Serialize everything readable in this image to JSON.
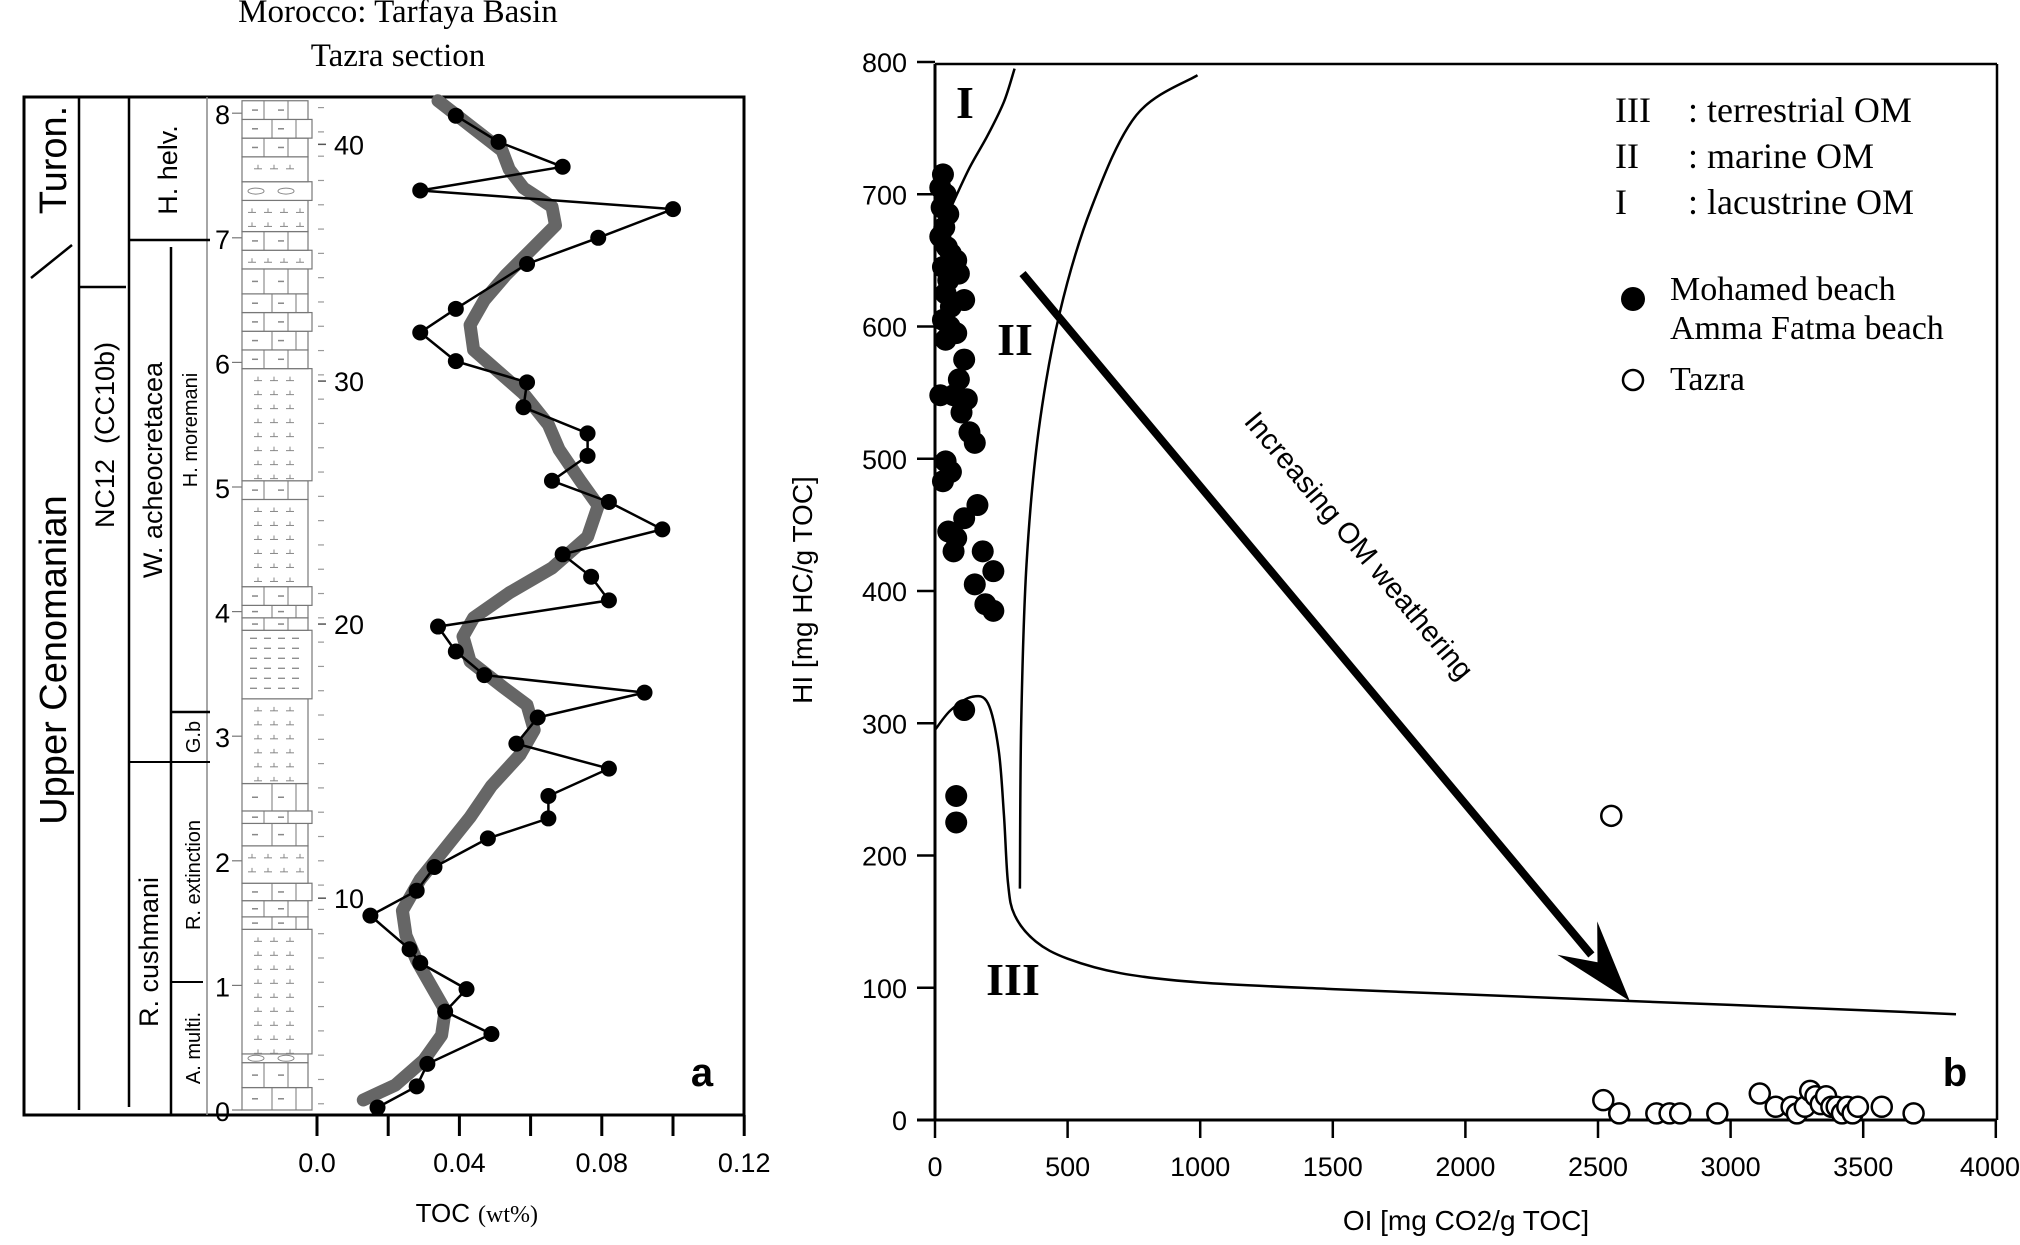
{
  "chart_data": [
    {
      "type": "line",
      "panel_label": "a",
      "title": [
        "Morocco: Tarfaya Basin",
        "Tazra section"
      ],
      "xlabel": "TOC",
      "xlabel_unit": "(wt%)",
      "ylabel": "",
      "xlim": [
        0.0,
        0.12
      ],
      "ylim": [
        0,
        8
      ],
      "x_ticks": [
        0.0,
        0.02,
        0.04,
        0.06,
        0.08,
        0.1,
        0.12
      ],
      "x_tick_labels": [
        "0.0",
        "0.04",
        "0.08",
        "0.12"
      ],
      "y_tick_labels": [
        "0",
        "1",
        "2",
        "3",
        "4",
        "5",
        "6",
        "7",
        "8"
      ],
      "sample_labels": [
        "10",
        "20",
        "30",
        "40"
      ],
      "sample_label_depths": [
        1.7,
        3.9,
        5.85,
        7.75
      ],
      "stages": [
        {
          "label": "Turon.",
          "from": 6.5,
          "to": 8.1
        },
        {
          "label": "Upper Cenomanian",
          "from": 0,
          "to": 6.5
        }
      ],
      "nannofossil_zone": {
        "label": "NC12  (CC10b)",
        "from": 0,
        "to": 6.5
      },
      "foram_zones": [
        {
          "label": "H. helv.",
          "from": 6.95,
          "to": 8.1
        },
        {
          "label": "W. acheocretacea",
          "from": 2.8,
          "to": 6.95
        },
        {
          "label": "R. cushmani",
          "from": 0,
          "to": 2.8
        }
      ],
      "foram_subzones": [
        {
          "label": "H. moremani",
          "from": 3.2,
          "to": 6.95
        },
        {
          "label": "G.b",
          "from": 2.8,
          "to": 3.2
        },
        {
          "label": "R. extinction",
          "from": 1.0,
          "to": 2.8
        },
        {
          "label": "A. multi.",
          "from": 0,
          "to": 1.0
        }
      ],
      "series": [
        {
          "name": "TOC samples",
          "style": "black line with filled circles",
          "points": [
            [
              0.039,
              7.98
            ],
            [
              0.051,
              7.77
            ],
            [
              0.069,
              7.57
            ],
            [
              0.029,
              7.38
            ],
            [
              0.1,
              7.23
            ],
            [
              0.079,
              7.0
            ],
            [
              0.059,
              6.79
            ],
            [
              0.039,
              6.43
            ],
            [
              0.029,
              6.24
            ],
            [
              0.039,
              6.01
            ],
            [
              0.059,
              5.84
            ],
            [
              0.058,
              5.64
            ],
            [
              0.076,
              5.43
            ],
            [
              0.076,
              5.25
            ],
            [
              0.066,
              5.05
            ],
            [
              0.082,
              4.88
            ],
            [
              0.097,
              4.66
            ],
            [
              0.069,
              4.46
            ],
            [
              0.077,
              4.28
            ],
            [
              0.082,
              4.09
            ],
            [
              0.034,
              3.88
            ],
            [
              0.039,
              3.68
            ],
            [
              0.047,
              3.49
            ],
            [
              0.092,
              3.35
            ],
            [
              0.062,
              3.15
            ],
            [
              0.056,
              2.94
            ],
            [
              0.082,
              2.74
            ],
            [
              0.065,
              2.52
            ],
            [
              0.065,
              2.34
            ],
            [
              0.048,
              2.18
            ],
            [
              0.033,
              1.95
            ],
            [
              0.028,
              1.76
            ],
            [
              0.015,
              1.56
            ],
            [
              0.026,
              1.29
            ],
            [
              0.029,
              1.18
            ],
            [
              0.042,
              0.97
            ],
            [
              0.036,
              0.79
            ],
            [
              0.049,
              0.61
            ],
            [
              0.031,
              0.37
            ],
            [
              0.028,
              0.19
            ],
            [
              0.017,
              0.02
            ]
          ]
        },
        {
          "name": "Smoothed trend",
          "style": "thick grey line",
          "color": "#666666",
          "points": [
            [
              0.034,
              8.1
            ],
            [
              0.043,
              7.9
            ],
            [
              0.052,
              7.7
            ],
            [
              0.054,
              7.55
            ],
            [
              0.058,
              7.4
            ],
            [
              0.066,
              7.25
            ],
            [
              0.067,
              7.1
            ],
            [
              0.06,
              6.9
            ],
            [
              0.053,
              6.7
            ],
            [
              0.047,
              6.5
            ],
            [
              0.043,
              6.3
            ],
            [
              0.044,
              6.1
            ],
            [
              0.05,
              5.95
            ],
            [
              0.058,
              5.75
            ],
            [
              0.065,
              5.5
            ],
            [
              0.068,
              5.3
            ],
            [
              0.074,
              5.05
            ],
            [
              0.079,
              4.85
            ],
            [
              0.076,
              4.6
            ],
            [
              0.066,
              4.35
            ],
            [
              0.054,
              4.15
            ],
            [
              0.044,
              3.95
            ],
            [
              0.041,
              3.8
            ],
            [
              0.043,
              3.6
            ],
            [
              0.052,
              3.4
            ],
            [
              0.059,
              3.25
            ],
            [
              0.061,
              3.05
            ],
            [
              0.057,
              2.85
            ],
            [
              0.049,
              2.6
            ],
            [
              0.043,
              2.35
            ],
            [
              0.036,
              2.1
            ],
            [
              0.029,
              1.85
            ],
            [
              0.024,
              1.6
            ],
            [
              0.025,
              1.4
            ],
            [
              0.028,
              1.2
            ],
            [
              0.032,
              1.0
            ],
            [
              0.036,
              0.8
            ],
            [
              0.035,
              0.6
            ],
            [
              0.03,
              0.4
            ],
            [
              0.022,
              0.2
            ],
            [
              0.013,
              0.08
            ]
          ]
        }
      ]
    },
    {
      "type": "scatter",
      "panel_label": "b",
      "xlabel": "OI [mg CO2/g TOC]",
      "ylabel": "HI [mg HC/g TOC]",
      "xlim": [
        0,
        4000
      ],
      "ylim": [
        0,
        800
      ],
      "x_tick_labels": [
        "0",
        "500",
        "1000",
        "1500",
        "2000",
        "2500",
        "3000",
        "3500",
        "4000"
      ],
      "y_tick_labels": [
        "0",
        "100",
        "200",
        "300",
        "400",
        "500",
        "600",
        "700",
        "800"
      ],
      "region_labels": [
        "I",
        "II",
        "III"
      ],
      "annotation": "Increasing OM weathering",
      "arrow": {
        "from": [
          330,
          640
        ],
        "to": [
          2620,
          90
        ]
      },
      "legend": {
        "placement": "top-right",
        "types": [
          {
            "key": "III",
            "label": ": terrestrial OM"
          },
          {
            "key": "II",
            "label": ": marine OM"
          },
          {
            "key": "I",
            "label": ": lacustrine OM"
          }
        ],
        "markers": [
          {
            "marker": "filled-circle",
            "label": "Mohamed beach"
          },
          {
            "marker": "",
            "label": "Amma Fatma beach"
          },
          {
            "marker": "open-circle",
            "label": "Tazra"
          }
        ]
      },
      "boundaries": [
        {
          "name": "Type I boundary",
          "points": [
            [
              60,
              690
            ],
            [
              130,
              720
            ],
            [
              200,
              745
            ],
            [
              260,
              770
            ],
            [
              300,
              795
            ]
          ]
        },
        {
          "name": "Type II boundary",
          "points": [
            [
              320,
              175
            ],
            [
              325,
              300
            ],
            [
              345,
              420
            ],
            [
              390,
              520
            ],
            [
              470,
              610
            ],
            [
              590,
              690
            ],
            [
              760,
              760
            ],
            [
              990,
              790
            ]
          ]
        },
        {
          "name": "Type III boundary",
          "points": [
            [
              0,
              295
            ],
            [
              60,
              310
            ],
            [
              140,
              320
            ],
            [
              200,
              315
            ],
            [
              240,
              280
            ],
            [
              260,
              230
            ],
            [
              275,
              180
            ],
            [
              300,
              155
            ],
            [
              380,
              135
            ],
            [
              500,
              122
            ],
            [
              700,
              111
            ],
            [
              1000,
              104
            ],
            [
              1500,
              99
            ],
            [
              2000,
              95
            ],
            [
              2620,
              90
            ],
            [
              3000,
              87
            ],
            [
              3500,
              83
            ],
            [
              3850,
              80
            ]
          ]
        }
      ],
      "series": [
        {
          "name": "Mohamed beach / Amma Fatma beach",
          "marker": "filled-circle",
          "points": [
            [
              30,
              715
            ],
            [
              20,
              705
            ],
            [
              40,
              700
            ],
            [
              25,
              690
            ],
            [
              50,
              685
            ],
            [
              35,
              675
            ],
            [
              20,
              668
            ],
            [
              45,
              660
            ],
            [
              60,
              655
            ],
            [
              80,
              650
            ],
            [
              30,
              645
            ],
            [
              50,
              635
            ],
            [
              90,
              640
            ],
            [
              40,
              625
            ],
            [
              110,
              620
            ],
            [
              60,
              615
            ],
            [
              30,
              605
            ],
            [
              55,
              600
            ],
            [
              40,
              590
            ],
            [
              80,
              595
            ],
            [
              110,
              575
            ],
            [
              90,
              560
            ],
            [
              70,
              548
            ],
            [
              20,
              548
            ],
            [
              120,
              545
            ],
            [
              100,
              535
            ],
            [
              130,
              520
            ],
            [
              150,
              512
            ],
            [
              40,
              498
            ],
            [
              60,
              490
            ],
            [
              30,
              483
            ],
            [
              160,
              465
            ],
            [
              50,
              445
            ],
            [
              110,
              455
            ],
            [
              80,
              440
            ],
            [
              70,
              430
            ],
            [
              180,
              430
            ],
            [
              150,
              405
            ],
            [
              190,
              390
            ],
            [
              220,
              415
            ],
            [
              220,
              385
            ],
            [
              110,
              310
            ],
            [
              80,
              245
            ],
            [
              80,
              225
            ]
          ]
        },
        {
          "name": "Tazra",
          "marker": "open-circle",
          "points": [
            [
              2550,
              230
            ],
            [
              2520,
              15
            ],
            [
              2580,
              5
            ],
            [
              2720,
              5
            ],
            [
              2770,
              5
            ],
            [
              2810,
              5
            ],
            [
              2950,
              5
            ],
            [
              3110,
              20
            ],
            [
              3170,
              10
            ],
            [
              3230,
              10
            ],
            [
              3250,
              5
            ],
            [
              3280,
              10
            ],
            [
              3300,
              22
            ],
            [
              3320,
              18
            ],
            [
              3340,
              12
            ],
            [
              3360,
              18
            ],
            [
              3380,
              10
            ],
            [
              3400,
              10
            ],
            [
              3420,
              5
            ],
            [
              3440,
              10
            ],
            [
              3460,
              5
            ],
            [
              3480,
              10
            ],
            [
              3570,
              10
            ],
            [
              3690,
              5
            ]
          ]
        }
      ]
    }
  ]
}
